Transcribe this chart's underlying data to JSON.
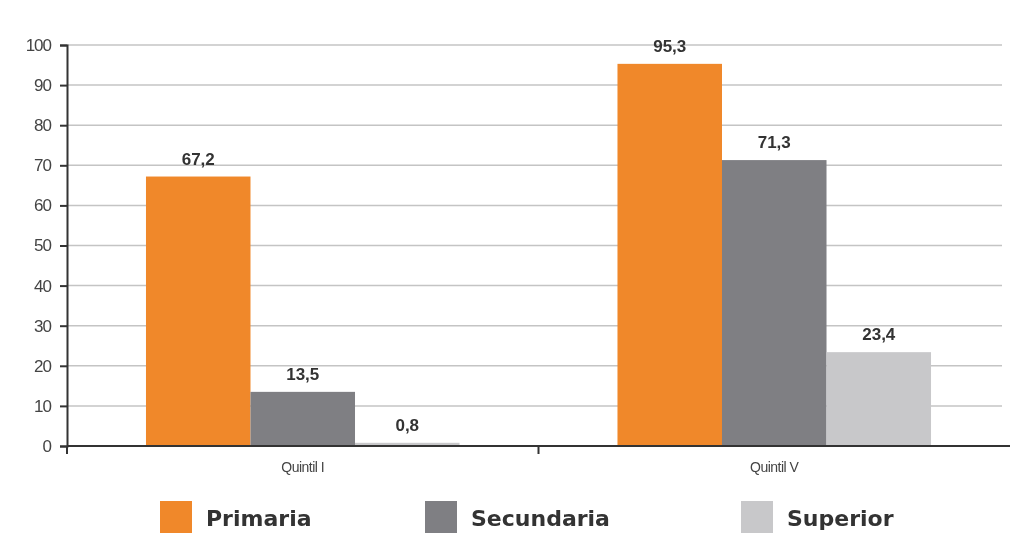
{
  "chart_data": {
    "type": "bar",
    "categories": [
      "Quintil I",
      "Quintil V"
    ],
    "series": [
      {
        "name": "Primaria",
        "color": "#f0882a",
        "values": [
          67.2,
          95.3
        ],
        "value_labels": [
          "67,2",
          "95,3"
        ]
      },
      {
        "name": "Secundaria",
        "color": "#7f7f83",
        "values": [
          13.5,
          71.3
        ],
        "value_labels": [
          "13,5",
          "71,3"
        ]
      },
      {
        "name": "Superior",
        "color": "#c8c8ca",
        "values": [
          0.8,
          23.4
        ],
        "value_labels": [
          "0,8",
          "23,4"
        ]
      }
    ],
    "ylim": [
      0,
      100
    ],
    "yticks": [
      0,
      10,
      20,
      30,
      40,
      50,
      60,
      70,
      80,
      90,
      100
    ],
    "grid": "y",
    "legend": "bottom"
  }
}
